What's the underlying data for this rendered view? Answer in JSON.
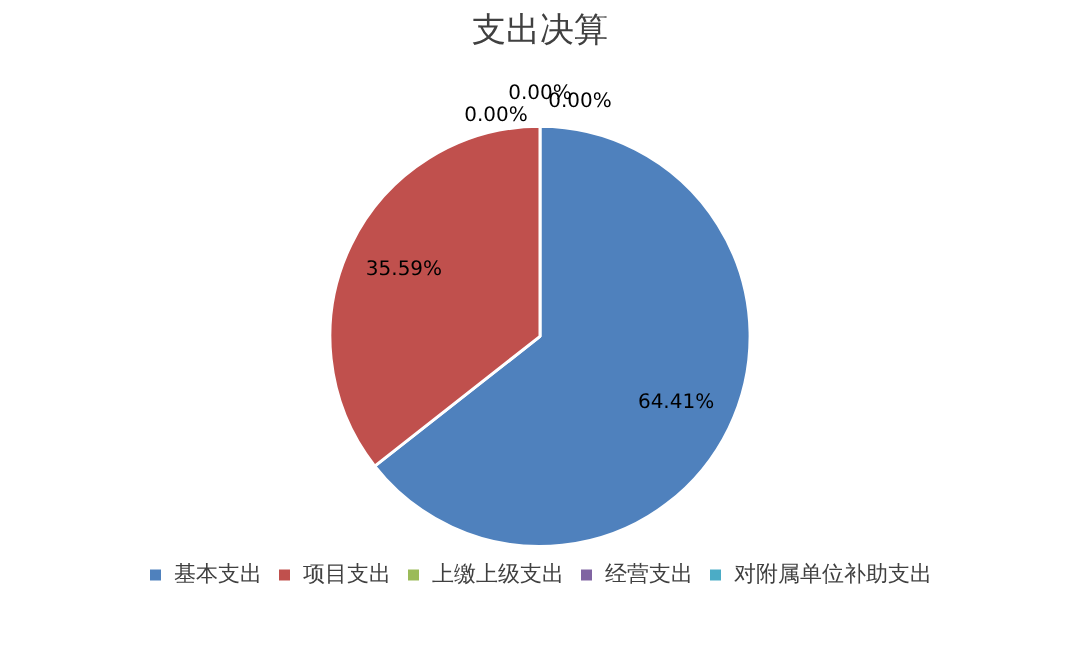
{
  "chart_data": {
    "type": "pie",
    "title": "支出决算",
    "categories": [
      "基本支出",
      "项目支出",
      "上缴上级支出",
      "经营支出",
      "对附属单位补助支出"
    ],
    "values": [
      64.41,
      35.59,
      0,
      0,
      0
    ],
    "colors": [
      "#4f81bd",
      "#c0504d",
      "#9bbb59",
      "#8064a2",
      "#4bacc6"
    ],
    "value_labels": [
      "64.41%",
      "35.59%",
      "0.00%",
      "0.00%",
      "0.00%"
    ],
    "legend": "bottom"
  }
}
